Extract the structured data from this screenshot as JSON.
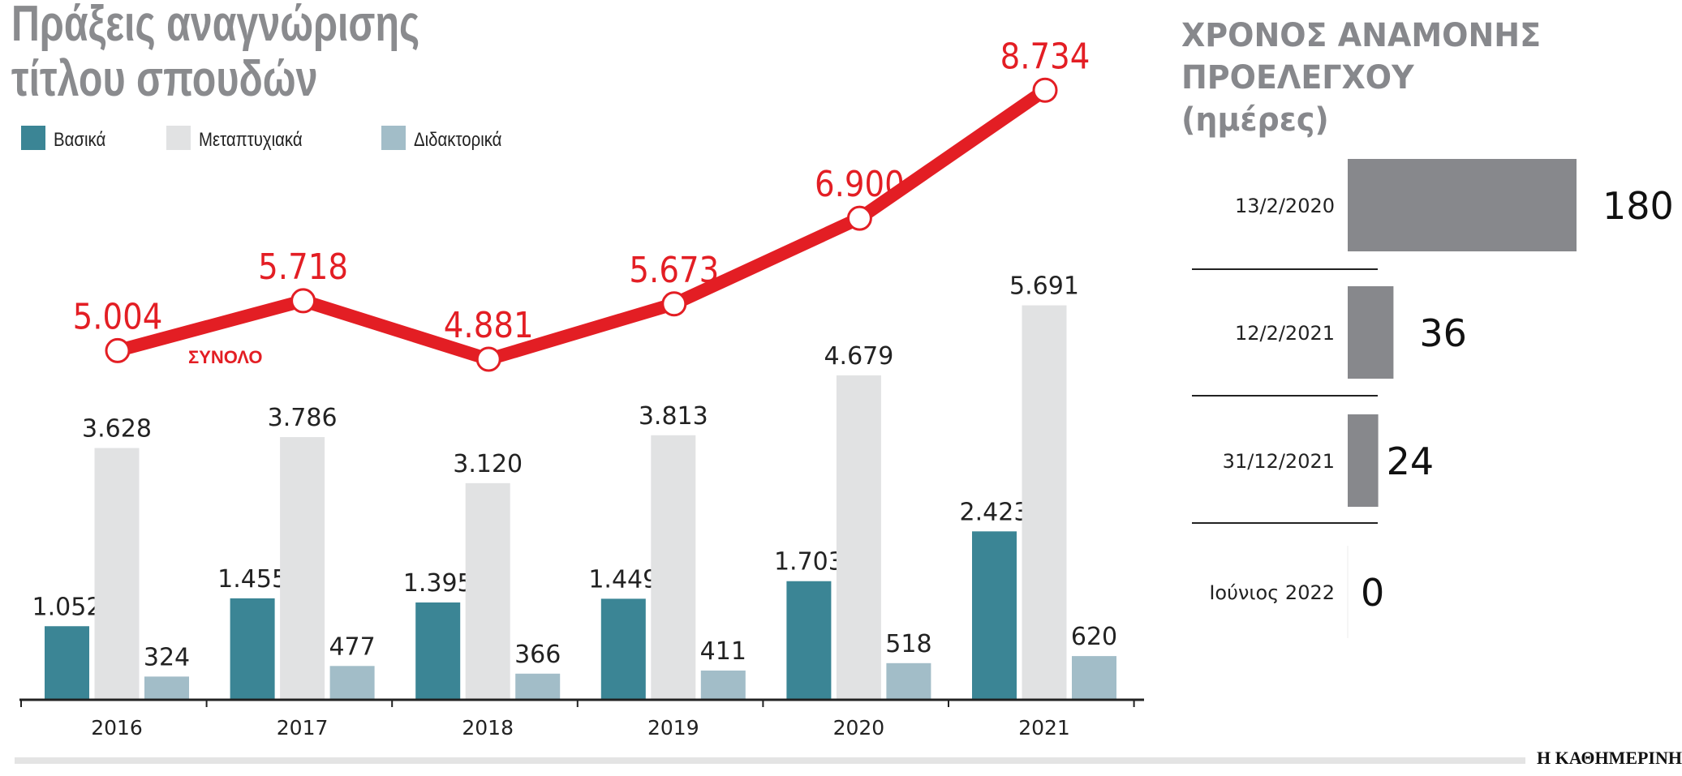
{
  "main_title": {
    "line1": "Πράξεις αναγνώρισης",
    "line2": "τίτλου σπουδών"
  },
  "side_title": {
    "line1": "ΧΡΟΝΟΣ ΑΝΑΜΟΝΗΣ",
    "line2": "ΠΡΟΕΛΕΓΧΟΥ",
    "line3": "(ημέρες)"
  },
  "brand": "Η ΚΑΘΗΜΕΡΙΝΗ",
  "chart_data": [
    {
      "type": "bar",
      "categories": [
        "2016",
        "2017",
        "2018",
        "2019",
        "2020",
        "2021"
      ],
      "legend_position": "top-left",
      "series": [
        {
          "name": "Βασικά",
          "color": "#3b8595",
          "values": [
            1052,
            1455,
            1395,
            1449,
            1703,
            2423
          ],
          "labels": [
            "1.052",
            "1.455",
            "1.395",
            "1.449",
            "1.703",
            "2.423"
          ]
        },
        {
          "name": "Μεταπτυχιακά",
          "color": "#e1e2e3",
          "values": [
            3628,
            3786,
            3120,
            3813,
            4679,
            5691
          ],
          "labels": [
            "3.628",
            "3.786",
            "3.120",
            "3.813",
            "4.679",
            "5.691"
          ]
        },
        {
          "name": "Διδακτορικά",
          "color": "#a2bdc8",
          "values": [
            324,
            477,
            366,
            411,
            518,
            620
          ],
          "labels": [
            "324",
            "477",
            "366",
            "411",
            "518",
            "620"
          ]
        }
      ],
      "line": {
        "name": "ΣΥΝΟΛΟ",
        "color": "#e31e24",
        "values": [
          5004,
          5718,
          4881,
          5673,
          6900,
          8734
        ],
        "labels": [
          "5.004",
          "5.718",
          "4.881",
          "5.673",
          "6.900",
          "8.734"
        ]
      },
      "grid": false
    },
    {
      "type": "bar",
      "orientation": "horizontal",
      "categories": [
        "13/2/2020",
        "12/2/2021",
        "31/12/2021",
        "Ιούνιος 2022"
      ],
      "values": [
        180,
        36,
        24,
        0
      ],
      "labels": [
        "180",
        "36",
        "24",
        "0"
      ],
      "color": "#87888c",
      "grid": false
    }
  ]
}
